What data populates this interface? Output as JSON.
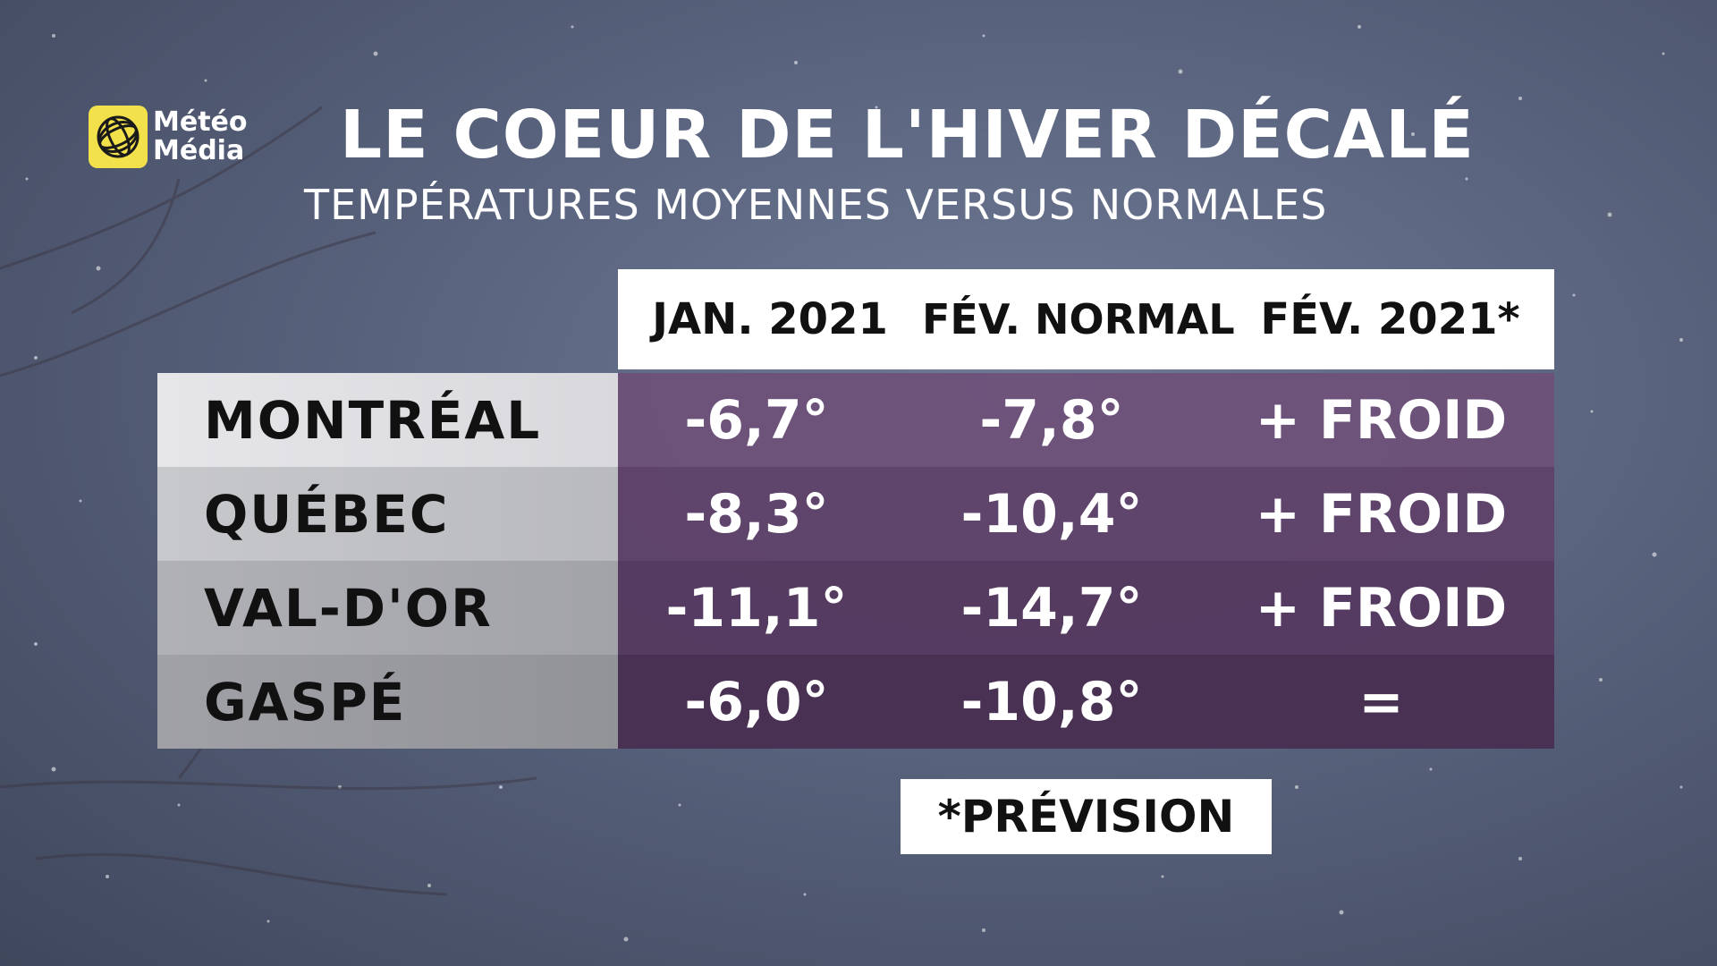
{
  "logo": {
    "line1": "Météo",
    "line2": "Média"
  },
  "title": "LE COEUR DE L'HIVER DÉCALÉ",
  "subtitle": "TEMPÉRATURES MOYENNES VERSUS NORMALES",
  "table": {
    "headers": [
      "JAN. 2021",
      "FÉV. NORMAL",
      "FÉV. 2021*"
    ],
    "rows": [
      {
        "city": "MONTRÉAL",
        "jan": "-6,7°",
        "normal": "-7,8°",
        "fev": "+ FROID"
      },
      {
        "city": "QUÉBEC",
        "jan": "-8,3°",
        "normal": "-10,4°",
        "fev": "+ FROID"
      },
      {
        "city": "VAL-D'OR",
        "jan": "-11,1°",
        "normal": "-14,7°",
        "fev": "+ FROID"
      },
      {
        "city": "GASPÉ",
        "jan": "-6,0°",
        "normal": "-10,8°",
        "fev": "="
      }
    ]
  },
  "footnote": "*PRÉVISION",
  "colors": {
    "logo_yellow": "#f2e14a",
    "table_purple": "#5f4169",
    "background": "#58627c"
  }
}
